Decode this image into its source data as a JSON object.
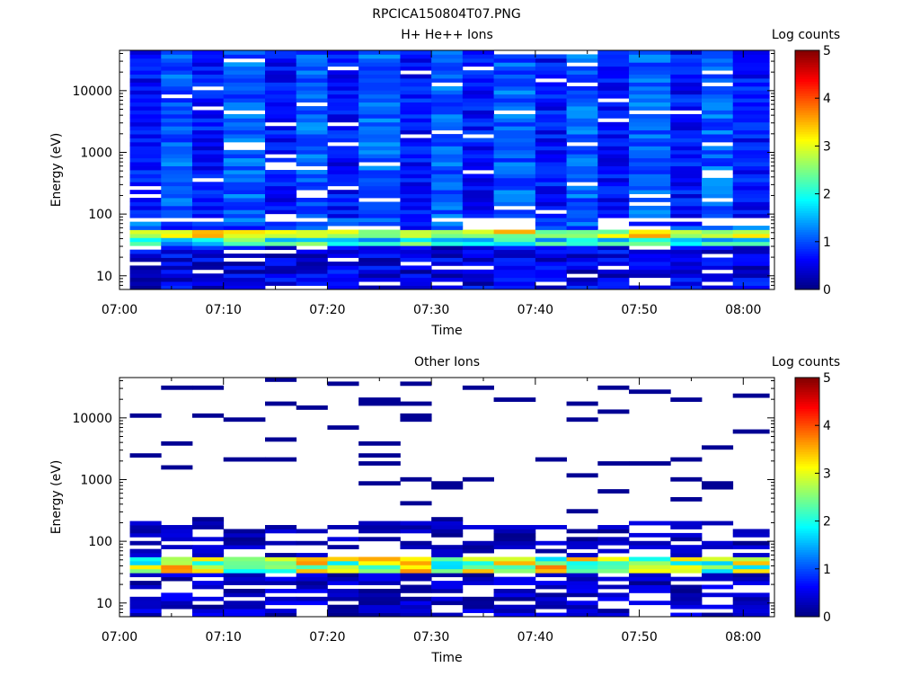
{
  "figure": {
    "title": "RPCICA150804T07.PNG"
  },
  "chart_data": [
    {
      "type": "heatmap",
      "title": "H+ He++ Ions",
      "xlabel": "Time",
      "ylabel": "Energy (eV)",
      "colorbar_label": "Log counts",
      "xlim": [
        "07:00",
        "08:03"
      ],
      "xticks": [
        "07:00",
        "07:10",
        "07:20",
        "07:30",
        "07:40",
        "07:50",
        "08:00"
      ],
      "y_scale": "log",
      "ylim": [
        6,
        45000
      ],
      "yticks": [
        "10",
        "100",
        "1000",
        "10000"
      ],
      "color_range": [
        0,
        5
      ],
      "colorbar_ticks": [
        "0",
        "1",
        "2",
        "3",
        "4",
        "5"
      ],
      "time_bins_start": [
        "07:01",
        "07:04",
        "07:07",
        "07:10",
        "07:14",
        "07:17",
        "07:20",
        "07:23",
        "07:27",
        "07:30",
        "07:33",
        "07:36",
        "07:40",
        "07:43",
        "07:46",
        "07:49",
        "07:53",
        "07:56",
        "07:59"
      ],
      "band_energy_range_eV": [
        40,
        60
      ],
      "band_peak_log_counts": 3.6,
      "background_log_counts_range": [
        0.3,
        1.2
      ]
    },
    {
      "type": "heatmap",
      "title": "Other Ions",
      "xlabel": "Time",
      "ylabel": "Energy (eV)",
      "colorbar_label": "Log counts",
      "xlim": [
        "07:00",
        "08:03"
      ],
      "xticks": [
        "07:00",
        "07:10",
        "07:20",
        "07:30",
        "07:40",
        "07:50",
        "08:00"
      ],
      "y_scale": "log",
      "ylim": [
        6,
        45000
      ],
      "yticks": [
        "10",
        "100",
        "1000",
        "10000"
      ],
      "color_range": [
        0,
        5
      ],
      "colorbar_ticks": [
        "0",
        "1",
        "2",
        "3",
        "4",
        "5"
      ],
      "time_bins_start": [
        "07:01",
        "07:04",
        "07:07",
        "07:10",
        "07:14",
        "07:17",
        "07:20",
        "07:23",
        "07:27",
        "07:30",
        "07:33",
        "07:36",
        "07:40",
        "07:43",
        "07:46",
        "07:49",
        "07:53",
        "07:56",
        "07:59"
      ],
      "band_energy_range_eV": [
        30,
        60
      ],
      "band_peak_log_counts": 3.8,
      "sparse_high_energy_log_counts": 0.1
    }
  ]
}
